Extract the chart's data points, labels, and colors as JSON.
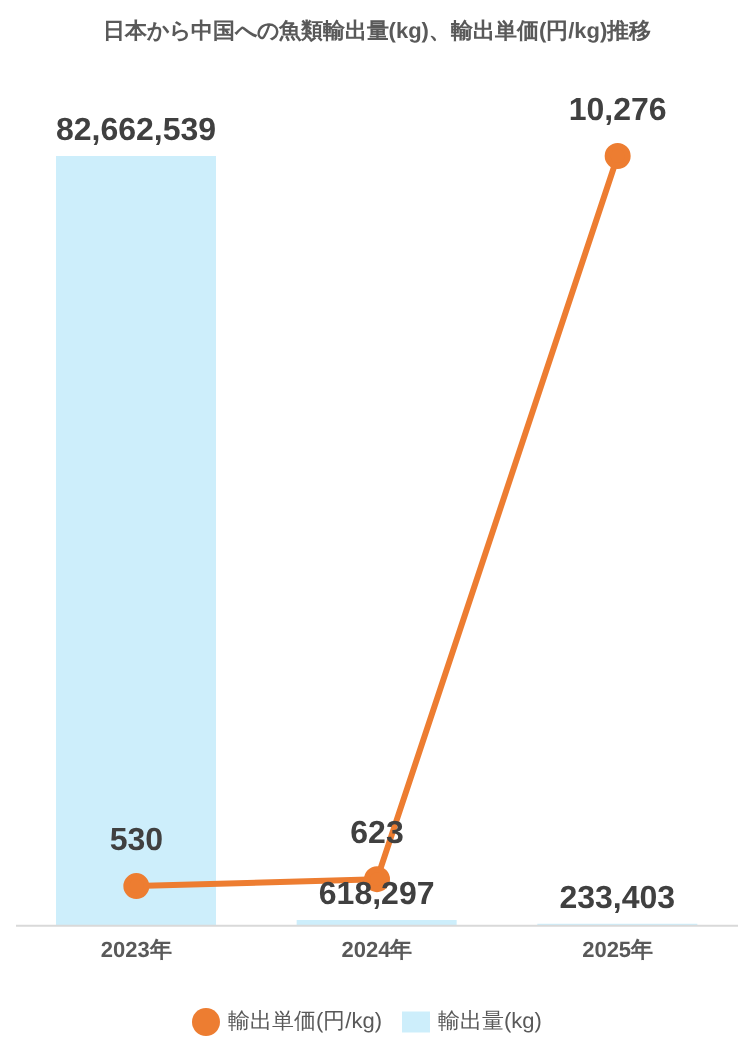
{
  "chart_data": {
    "type": "bar",
    "title": "日本から中国への魚類輸出量(kg)、輸出単価(円/kg)推移",
    "categories": [
      "2023年",
      "2024年",
      "2025年"
    ],
    "series": [
      {
        "name": "輸出量(kg)",
        "color": "#cdeefb",
        "values": [
          82662539,
          618297,
          233403
        ],
        "value_labels": [
          "82,662,539",
          "618,297",
          "233,403"
        ]
      },
      {
        "name": "輸出単価(円/kg)",
        "type": "line",
        "axis": "y2",
        "color": "#ed7d31",
        "values": [
          530,
          623,
          10276
        ],
        "value_labels": [
          "530",
          "623",
          "10,276"
        ],
        "marker": "circle",
        "line_style": "solid"
      }
    ],
    "grid": false,
    "legend": "bottom"
  }
}
